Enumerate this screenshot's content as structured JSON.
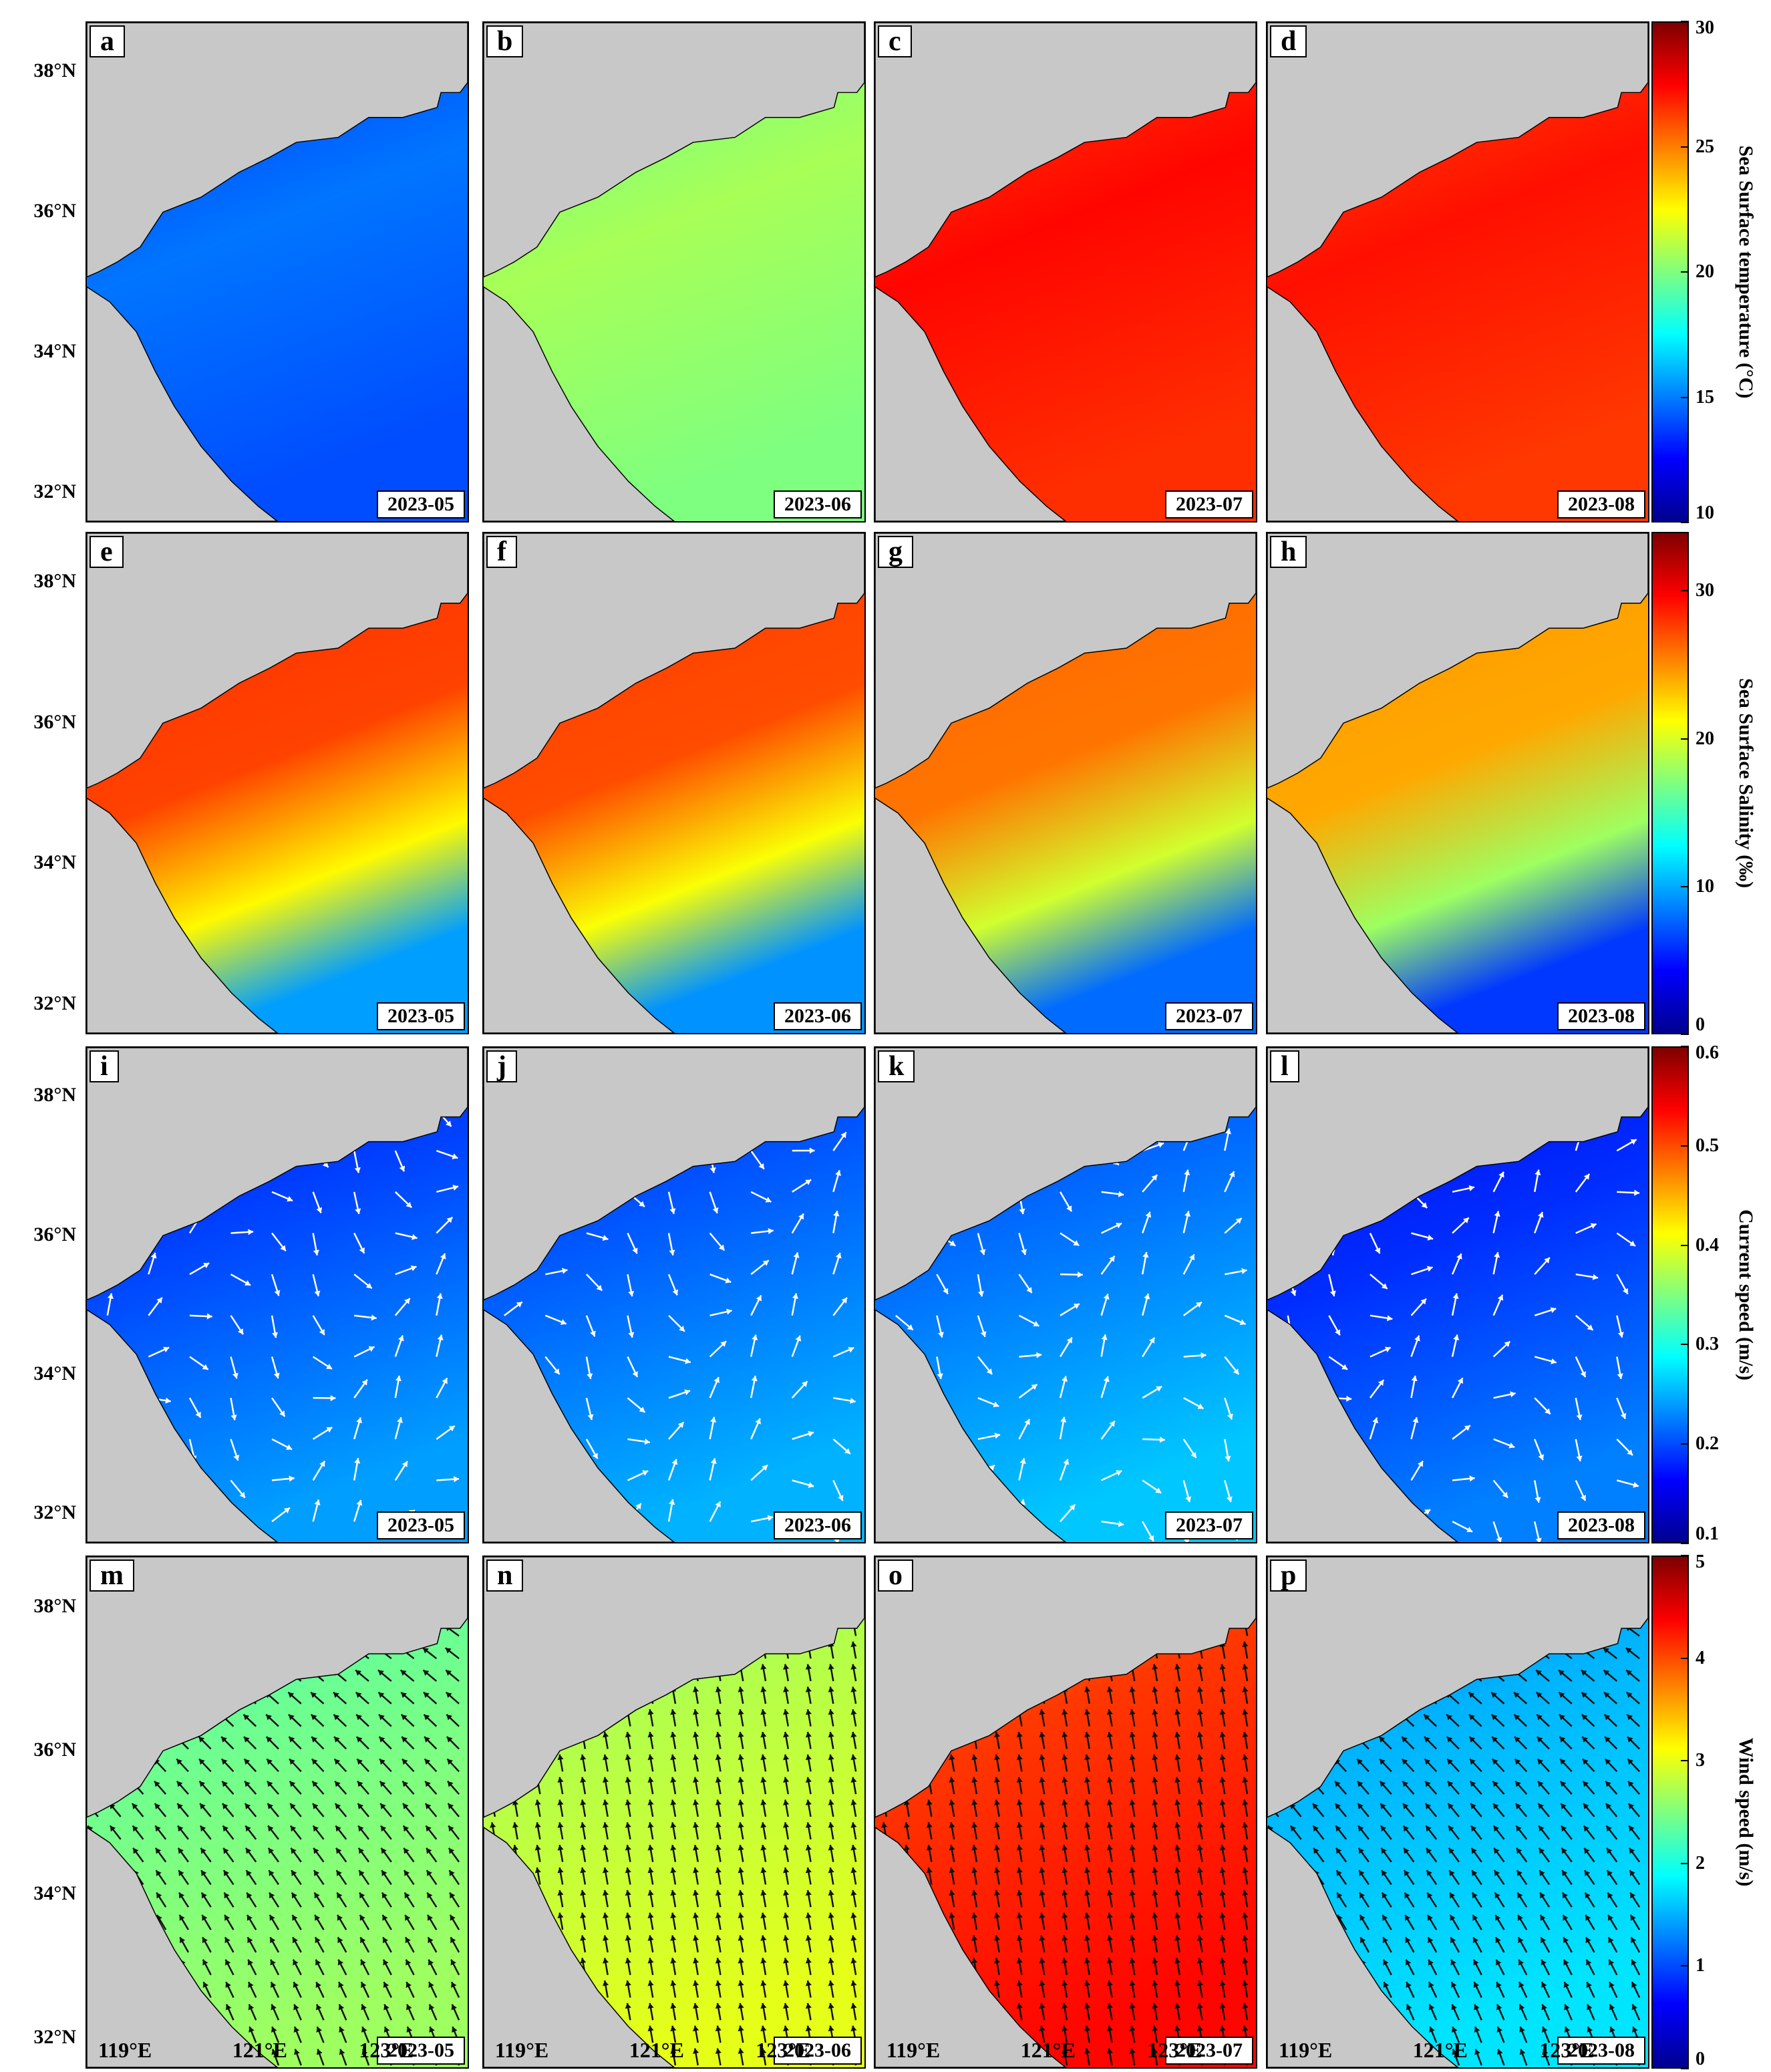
{
  "row_dates": [
    "2023-05",
    "2023-06",
    "2023-07",
    "2023-08"
  ],
  "panels": [
    {
      "letter": "a",
      "date": "2023-05",
      "field": "sst",
      "level": 0.22
    },
    {
      "letter": "b",
      "date": "2023-06",
      "field": "sst",
      "level": 0.52
    },
    {
      "letter": "c",
      "date": "2023-07",
      "field": "sst",
      "level": 0.85
    },
    {
      "letter": "d",
      "date": "2023-08",
      "field": "sst",
      "level": 0.84
    },
    {
      "letter": "e",
      "date": "2023-05",
      "field": "sss",
      "level": 0.83
    },
    {
      "letter": "f",
      "date": "2023-06",
      "field": "sss",
      "level": 0.82
    },
    {
      "letter": "g",
      "date": "2023-07",
      "field": "sss",
      "level": 0.78
    },
    {
      "letter": "h",
      "date": "2023-08",
      "field": "sss",
      "level": 0.73
    },
    {
      "letter": "i",
      "date": "2023-05",
      "field": "current",
      "level": 0.08
    },
    {
      "letter": "j",
      "date": "2023-06",
      "field": "current",
      "level": 0.1
    },
    {
      "letter": "k",
      "date": "2023-07",
      "field": "current",
      "level": 0.12
    },
    {
      "letter": "l",
      "date": "2023-08",
      "field": "current",
      "level": 0.05
    },
    {
      "letter": "m",
      "date": "2023-05",
      "field": "wind",
      "level": 0.48
    },
    {
      "letter": "n",
      "date": "2023-06",
      "field": "wind",
      "level": 0.55
    },
    {
      "letter": "o",
      "date": "2023-07",
      "field": "wind",
      "level": 0.82
    },
    {
      "letter": "p",
      "date": "2023-08",
      "field": "wind",
      "level": 0.3
    }
  ],
  "lat_labels": [
    "38°N",
    "36°N",
    "34°N",
    "32°N"
  ],
  "lon_labels": [
    "119°E",
    "121°E",
    "123°E"
  ],
  "colorbars": [
    {
      "label": "Sea Surface temperature (°C)",
      "ticks": [
        "30",
        "25",
        "20",
        "15",
        "10"
      ],
      "min": 10,
      "max": 30
    },
    {
      "label": "Sea Surface Salinity (‰)",
      "ticks": [
        "30",
        "20",
        "10",
        "0"
      ],
      "min": 0,
      "max": 34
    },
    {
      "label": "Current speed (m/s)",
      "ticks": [
        "0.6",
        "0.5",
        "0.4",
        "0.3",
        "0.2",
        "0.1"
      ],
      "min": 0.1,
      "max": 0.6
    },
    {
      "label": "Wind speed (m/s)",
      "ticks": [
        "5",
        "4",
        "3",
        "2",
        "1",
        "0"
      ],
      "min": 0,
      "max": 5
    }
  ],
  "colors": {
    "land": "#c8c8c8",
    "arrow_current": "#ffffff",
    "arrow_wind": "#111111",
    "jet": [
      "#00008f",
      "#0000ff",
      "#007fff",
      "#00ffff",
      "#7fff7f",
      "#ffff00",
      "#ff7f00",
      "#ff0000",
      "#7f0000"
    ]
  }
}
